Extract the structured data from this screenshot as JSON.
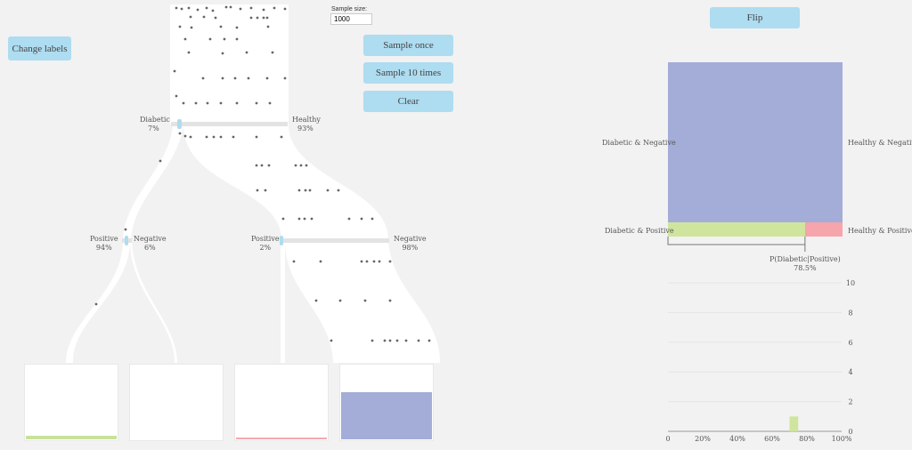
{
  "buttons": {
    "change_labels": "Change labels",
    "sample_once": "Sample once",
    "sample_10": "Sample 10 times",
    "clear": "Clear",
    "flip": "Flip"
  },
  "sample_size": {
    "label": "Sample size:",
    "value": "1000"
  },
  "tree": {
    "root": {
      "left_name": "Diabetic",
      "left_pct": "7%",
      "right_name": "Healthy",
      "right_pct": "93%",
      "split_fraction": 0.07
    },
    "diabetic_split": {
      "left_name": "Positive",
      "left_pct": "94%",
      "right_name": "Negative",
      "right_pct": "6%",
      "split_fraction": 0.94
    },
    "healthy_split": {
      "left_name": "Positive",
      "left_pct": "2%",
      "right_name": "Negative",
      "right_pct": "98%",
      "split_fraction": 0.02
    }
  },
  "bins": [
    {
      "fill_fraction": 0.05,
      "color": "#c8e29a"
    },
    {
      "fill_fraction": 0.0,
      "color": "#c8e29a"
    },
    {
      "fill_fraction": 0.02,
      "color": "#f4a9ae"
    },
    {
      "fill_fraction": 0.62,
      "color": "#a4acd8"
    }
  ],
  "mosaic": {
    "labels": {
      "dn": "Diabetic & Negative",
      "hn": "Healthy & Negative",
      "dp": "Diabetic & Positive",
      "hp": "Healthy & Positive"
    },
    "colors": {
      "negative": "#a4acd8",
      "diabetic_positive": "#cfe59e",
      "healthy_positive": "#f5a5ab"
    },
    "negative_fraction": 0.92,
    "diabetic_positive_share": 0.785,
    "posterior_label": "P(Diabetic|Positive)",
    "posterior_value": "78.5%"
  },
  "chart_data": {
    "type": "bar",
    "x_ticks": [
      "0",
      "20%",
      "40%",
      "60%",
      "80%",
      "100%"
    ],
    "y_ticks": [
      "0",
      "2",
      "4",
      "6",
      "8",
      "10"
    ],
    "xlim": [
      0,
      100
    ],
    "ylim": [
      0,
      10
    ],
    "bars": [
      {
        "x_from": 70,
        "x_to": 75,
        "count": 1
      }
    ],
    "bar_color": "#cfe59e",
    "grid": true
  }
}
